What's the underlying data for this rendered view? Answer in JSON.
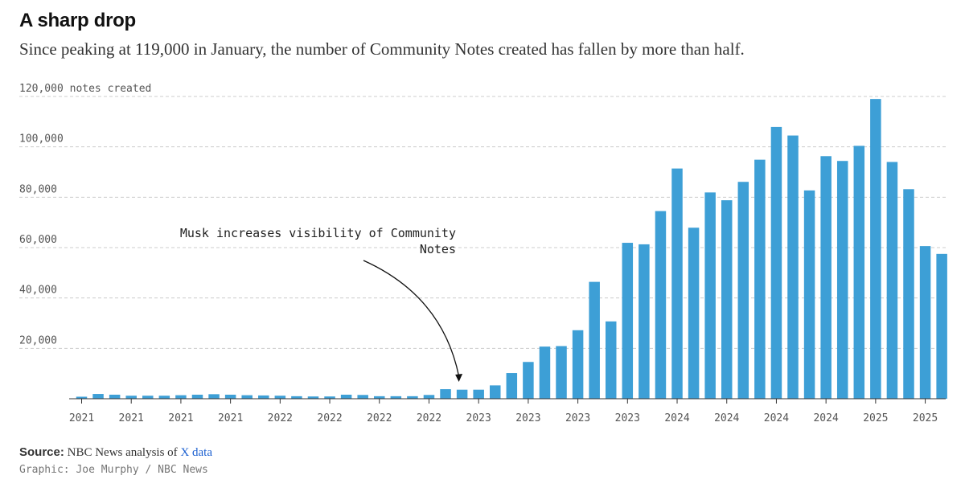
{
  "header": {
    "title": "A sharp drop",
    "subtitle": "Since peaking at 119,000 in January, the number of Community Notes created has fallen by more than half."
  },
  "footer": {
    "source_label": "Source:",
    "source_text": "NBC News analysis of",
    "source_link": "X data",
    "credit": "Graphic: Joe Murphy / NBC News"
  },
  "colors": {
    "bar": "#3d9fd6",
    "grid": "#cccccc",
    "link": "#1a5fd0"
  },
  "chart_data": {
    "type": "bar",
    "title": "A sharp drop",
    "ylabel": "notes created",
    "ylim": [
      0,
      120000
    ],
    "y_ticks": [
      20000,
      40000,
      60000,
      80000,
      100000,
      120000
    ],
    "y_tick_labels": [
      "20,000",
      "40,000",
      "60,000",
      "80,000",
      "100,000",
      "120,000 notes created"
    ],
    "x_tick_positions": [
      0,
      3,
      6,
      9,
      12,
      15,
      18,
      21,
      24,
      27,
      30,
      33,
      36,
      39,
      42,
      45,
      48,
      51
    ],
    "x_tick_labels": [
      "2021",
      "2021",
      "2021",
      "2021",
      "2022",
      "2022",
      "2022",
      "2022",
      "2023",
      "2023",
      "2023",
      "2023",
      "2024",
      "2024",
      "2024",
      "2024",
      "2025",
      "2025"
    ],
    "values": [
      800,
      1900,
      1600,
      1200,
      1200,
      1200,
      1400,
      1600,
      1800,
      1600,
      1400,
      1300,
      1200,
      1000,
      900,
      900,
      1600,
      1500,
      1000,
      1000,
      1000,
      1500,
      3800,
      3600,
      3600,
      5300,
      10200,
      14600,
      20700,
      20900,
      27200,
      46400,
      30700,
      61900,
      61300,
      74500,
      91400,
      67900,
      81900,
      78800,
      86100,
      94900,
      107900,
      104500,
      82700,
      96300,
      94400,
      100400,
      119000,
      94000,
      83200,
      60600,
      57500
    ],
    "annotation": {
      "lines": [
        "Musk increases visibility of Community",
        "Notes"
      ],
      "bar_index": 23
    },
    "grid": true
  }
}
